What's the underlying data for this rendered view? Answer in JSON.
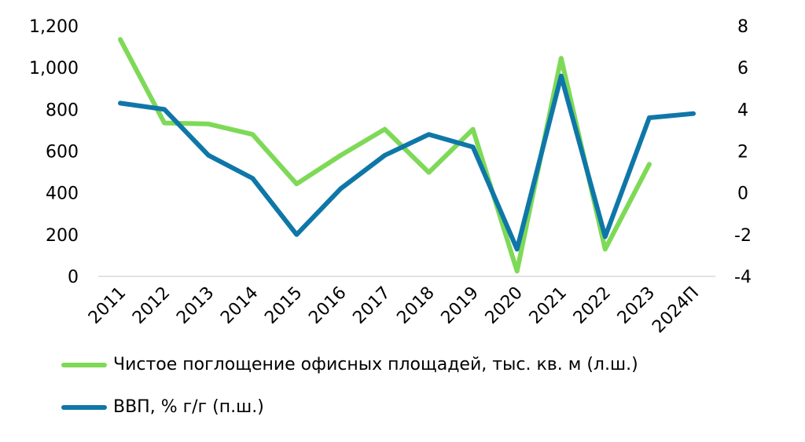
{
  "chart_data": {
    "type": "line",
    "categories": [
      "2011",
      "2012",
      "2013",
      "2014",
      "2015",
      "2016",
      "2017",
      "2018",
      "2019",
      "2020",
      "2021",
      "2022",
      "2023",
      "2024П"
    ],
    "y_left": {
      "min": 0,
      "max": 1200,
      "ticks": [
        0,
        200,
        400,
        600,
        800,
        1000,
        1200
      ],
      "tick_labels": [
        "0",
        "200",
        "400",
        "600",
        "800",
        "1,000",
        "1,200"
      ]
    },
    "y_right": {
      "min": -4,
      "max": 8,
      "ticks": [
        -4,
        -2,
        0,
        2,
        4,
        6,
        8
      ],
      "tick_labels": [
        "-4",
        "-2",
        "0",
        "2",
        "4",
        "6",
        "8"
      ]
    },
    "grid": false,
    "legend_position": "bottom",
    "series": [
      {
        "name": "Чистое поглощение офисных площадей, тыс. кв. м (л.ш.)",
        "axis": "left",
        "color": "#7ed957",
        "values": [
          1135,
          735,
          730,
          680,
          443,
          580,
          705,
          498,
          705,
          25,
          1045,
          130,
          537,
          null
        ]
      },
      {
        "name": "ВВП, % г/г (п.ш.)",
        "axis": "right",
        "color": "#0f77a8",
        "values": [
          4.3,
          4.0,
          1.8,
          0.7,
          -2.0,
          0.2,
          1.8,
          2.8,
          2.2,
          -2.7,
          5.6,
          -2.1,
          3.6,
          3.8
        ]
      }
    ]
  }
}
